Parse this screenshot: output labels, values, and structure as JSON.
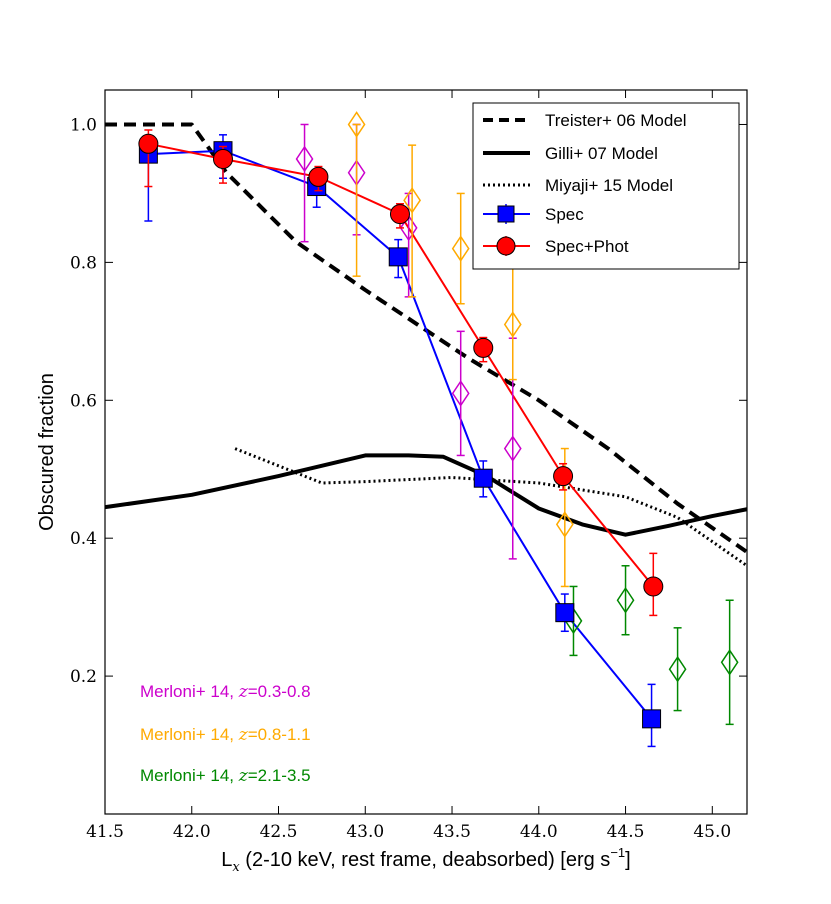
{
  "chart_data": {
    "type": "line",
    "title": "",
    "xlabel": "L",
    "xlabel_sub": "x",
    "xlabel_rest": " (2-10 keV, rest frame, deabsorbed) [erg s",
    "xlabel_sup": "−1",
    "xlabel_end": "]",
    "ylabel": "Obscured fraction",
    "xlim": [
      41.5,
      45.2
    ],
    "ylim": [
      0.0,
      1.05
    ],
    "xticks": [
      "41.5",
      "42.0",
      "42.5",
      "43.0",
      "43.5",
      "44.0",
      "44.5",
      "45.0"
    ],
    "xtick_values": [
      41.5,
      42.0,
      42.5,
      43.0,
      43.5,
      44.0,
      44.5,
      45.0
    ],
    "yticks": [
      "0.2",
      "0.4",
      "0.6",
      "0.8",
      "1.0"
    ],
    "ytick_values": [
      0.2,
      0.4,
      0.6,
      0.8,
      1.0
    ],
    "legend_position": "top-right",
    "models": [
      {
        "name": "Treister+ 06 Model",
        "style": "dashed",
        "color": "#000000",
        "x": [
          41.5,
          42.0,
          42.2,
          42.6,
          43.0,
          43.3,
          43.6,
          44.0,
          44.4,
          44.8,
          45.2
        ],
        "y": [
          1.0,
          1.0,
          0.93,
          0.83,
          0.76,
          0.71,
          0.66,
          0.6,
          0.53,
          0.45,
          0.38
        ]
      },
      {
        "name": "Gilli+ 07 Model",
        "style": "solid",
        "color": "#000000",
        "x": [
          41.5,
          42.0,
          42.5,
          43.0,
          43.25,
          43.45,
          43.7,
          44.0,
          44.25,
          44.5,
          44.75,
          45.0,
          45.2
        ],
        "y": [
          0.445,
          0.463,
          0.49,
          0.52,
          0.52,
          0.518,
          0.49,
          0.443,
          0.42,
          0.405,
          0.418,
          0.432,
          0.442
        ]
      },
      {
        "name": "Miyaji+ 15 Model",
        "style": "dotted",
        "color": "#000000",
        "x": [
          42.25,
          42.5,
          42.75,
          43.0,
          43.5,
          44.0,
          44.5,
          44.8,
          45.0,
          45.2
        ],
        "y": [
          0.53,
          0.505,
          0.48,
          0.482,
          0.488,
          0.48,
          0.46,
          0.43,
          0.395,
          0.36
        ]
      }
    ],
    "series": [
      {
        "name": "Spec",
        "color": "#0000ff",
        "marker": "square",
        "x": [
          41.75,
          42.18,
          42.72,
          43.19,
          43.68,
          44.15,
          44.65
        ],
        "y": [
          0.957,
          0.962,
          0.91,
          0.808,
          0.487,
          0.292,
          0.138
        ],
        "err_low": [
          0.097,
          0.04,
          0.03,
          0.03,
          0.027,
          0.027,
          0.04
        ],
        "err_high": [
          0.023,
          0.023,
          0.02,
          0.025,
          0.025,
          0.027,
          0.05
        ]
      },
      {
        "name": "Spec+Phot",
        "color": "#ff0000",
        "marker": "circle",
        "x": [
          41.75,
          42.18,
          42.73,
          43.2,
          43.68,
          44.14,
          44.66
        ],
        "y": [
          0.972,
          0.95,
          0.924,
          0.87,
          0.676,
          0.49,
          0.33
        ],
        "err_low": [
          0.062,
          0.035,
          0.02,
          0.02,
          0.02,
          0.02,
          0.042
        ],
        "err_high": [
          0.02,
          0.018,
          0.015,
          0.015,
          0.015,
          0.018,
          0.048
        ]
      }
    ],
    "literature": [
      {
        "label_prefix": "Merloni+ 14, ",
        "label_z": "z",
        "label_range": "=0.3-0.8",
        "color": "#cc00cc",
        "x": [
          42.65,
          42.95,
          43.25,
          43.55,
          43.85
        ],
        "y": [
          0.95,
          0.93,
          0.85,
          0.61,
          0.53
        ],
        "err_low": [
          0.12,
          0.09,
          0.1,
          0.09,
          0.16
        ],
        "err_high": [
          0.05,
          0.07,
          0.05,
          0.09,
          0.16
        ]
      },
      {
        "label_prefix": "Merloni+ 14, ",
        "label_z": "z",
        "label_range": "=0.8-1.1",
        "color": "#ffaa00",
        "x": [
          42.95,
          43.27,
          43.55,
          43.85,
          44.15
        ],
        "y": [
          1.0,
          0.89,
          0.82,
          0.71,
          0.42
        ],
        "err_low": [
          0.22,
          0.14,
          0.08,
          0.08,
          0.09
        ],
        "err_high": [
          0.0,
          0.08,
          0.08,
          0.2,
          0.11
        ]
      },
      {
        "label_prefix": "Merloni+ 14, ",
        "label_z": "z",
        "label_range": "=2.1-3.5",
        "color": "#008800",
        "x": [
          44.2,
          44.5,
          44.8,
          45.1
        ],
        "y": [
          0.28,
          0.31,
          0.21,
          0.22
        ],
        "err_low": [
          0.05,
          0.05,
          0.06,
          0.09
        ],
        "err_high": [
          0.05,
          0.05,
          0.06,
          0.09
        ]
      }
    ]
  }
}
